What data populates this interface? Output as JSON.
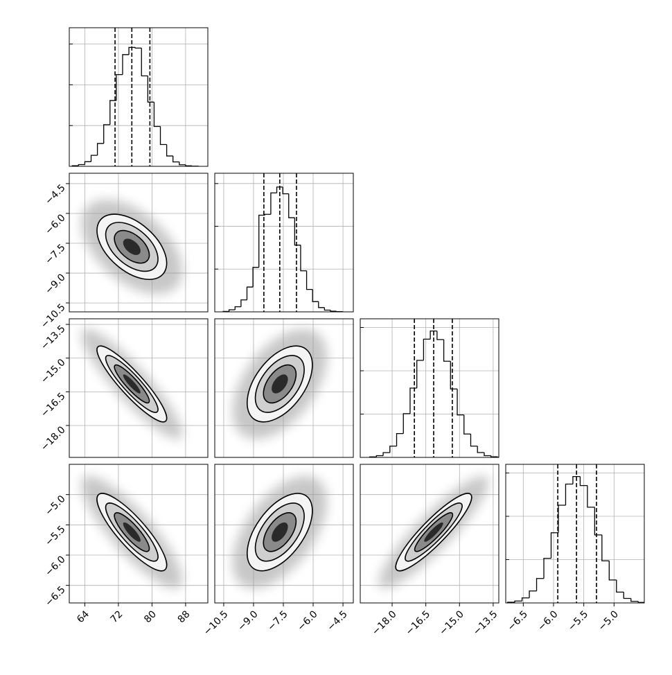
{
  "chart_data": {
    "type": "corner",
    "color": "#000000",
    "grid": true,
    "params": [
      {
        "xlim": [
          60.3,
          93.3
        ],
        "xticks": [
          64,
          72,
          80,
          88
        ],
        "bins": [
          61,
          62.5,
          64,
          65.5,
          67,
          68.5,
          70,
          71.5,
          73,
          74.5,
          76,
          77.5,
          79,
          80.5,
          82,
          83.5,
          85,
          86.5,
          88,
          89.5,
          91
        ],
        "counts": [
          7,
          21,
          57,
          135,
          280,
          511,
          807,
          1125,
          1370,
          1459,
          1450,
          1109,
          788,
          489,
          268,
          127,
          54,
          19,
          6,
          2
        ],
        "ylim": [
          0,
          1700
        ],
        "yticks": [
          500,
          1000,
          1500
        ],
        "quantiles": [
          71.2,
          75.2,
          79.5
        ]
      },
      {
        "xlim": [
          -10.95,
          -3.98
        ],
        "xticks": [
          {
            "value": -10.5,
            "label": "−10.5"
          },
          {
            "value": -9,
            "label": "−9.0"
          },
          {
            "value": -7.5,
            "label": "−7.5"
          },
          {
            "value": -6,
            "label": "−6.0"
          },
          {
            "value": -4.5,
            "label": "−4.5"
          }
        ],
        "bins": [
          -10.53,
          -10.23,
          -9.93,
          -9.63,
          -9.33,
          -9.03,
          -8.73,
          -8.43,
          -8.13,
          -7.83,
          -7.53,
          -7.23,
          -6.93,
          -6.63,
          -6.33,
          -6.03,
          -5.73,
          -5.43,
          -5.13,
          -4.83,
          -4.53
        ],
        "counts": [
          5,
          24,
          60,
          140,
          290,
          520,
          1130,
          1140,
          1390,
          1459,
          1380,
          1100,
          780,
          480,
          262,
          120,
          50,
          20,
          8,
          3
        ],
        "ylim": [
          0,
          1620
        ],
        "yticks": [
          500,
          1000,
          1500
        ],
        "quantiles": [
          -8.48,
          -7.68,
          -6.84
        ]
      },
      {
        "xlim": [
          -19.42,
          -13.25
        ],
        "xticks": [
          {
            "value": -18,
            "label": "−18.0"
          },
          {
            "value": -16.5,
            "label": "−16.5"
          },
          {
            "value": -15,
            "label": "−15.0"
          },
          {
            "value": -13.5,
            "label": "−13.5"
          }
        ],
        "bins": [
          -19.0,
          -18.7,
          -18.4,
          -18.1,
          -17.8,
          -17.5,
          -17.2,
          -16.9,
          -16.6,
          -16.3,
          -16.0,
          -15.7,
          -15.4,
          -15.1,
          -14.8,
          -14.5,
          -14.2,
          -13.9,
          -13.6,
          -13.3,
          -13.0
        ],
        "counts": [
          6,
          20,
          55,
          130,
          275,
          505,
          800,
          1120,
          1365,
          1459,
          1360,
          1110,
          790,
          490,
          270,
          130,
          56,
          20,
          7,
          2
        ],
        "ylim": [
          0,
          1600
        ],
        "yticks": [
          500,
          1000,
          1500
        ],
        "quantiles": [
          -17.01,
          -16.15,
          -15.32
        ]
      },
      {
        "xlim": [
          -6.79,
          -4.5
        ],
        "xticks": [
          {
            "value": -6.5,
            "label": "−6.5"
          },
          {
            "value": -6,
            "label": "−6.0"
          },
          {
            "value": -5.5,
            "label": "−5.5"
          },
          {
            "value": -5,
            "label": "−5.0"
          }
        ],
        "bins": [
          -6.76,
          -6.64,
          -6.52,
          -6.4,
          -6.28,
          -6.16,
          -6.04,
          -5.92,
          -5.8,
          -5.68,
          -5.56,
          -5.44,
          -5.32,
          -5.2,
          -5.08,
          -4.96,
          -4.84,
          -4.72,
          -4.6,
          -4.48,
          -4.36
        ],
        "counts": [
          8,
          22,
          58,
          138,
          282,
          515,
          810,
          1128,
          1372,
          1459,
          1355,
          1105,
          785,
          486,
          265,
          125,
          52,
          18,
          6,
          2
        ],
        "ylim": [
          0,
          1600
        ],
        "yticks": [
          500,
          1000,
          1500
        ],
        "quantiles": [
          -5.93,
          -5.62,
          -5.29
        ]
      }
    ],
    "correlations": [
      [],
      [
        -0.5
      ],
      [
        -0.9,
        0.5
      ],
      [
        -0.85,
        0.55,
        0.9
      ]
    ]
  }
}
